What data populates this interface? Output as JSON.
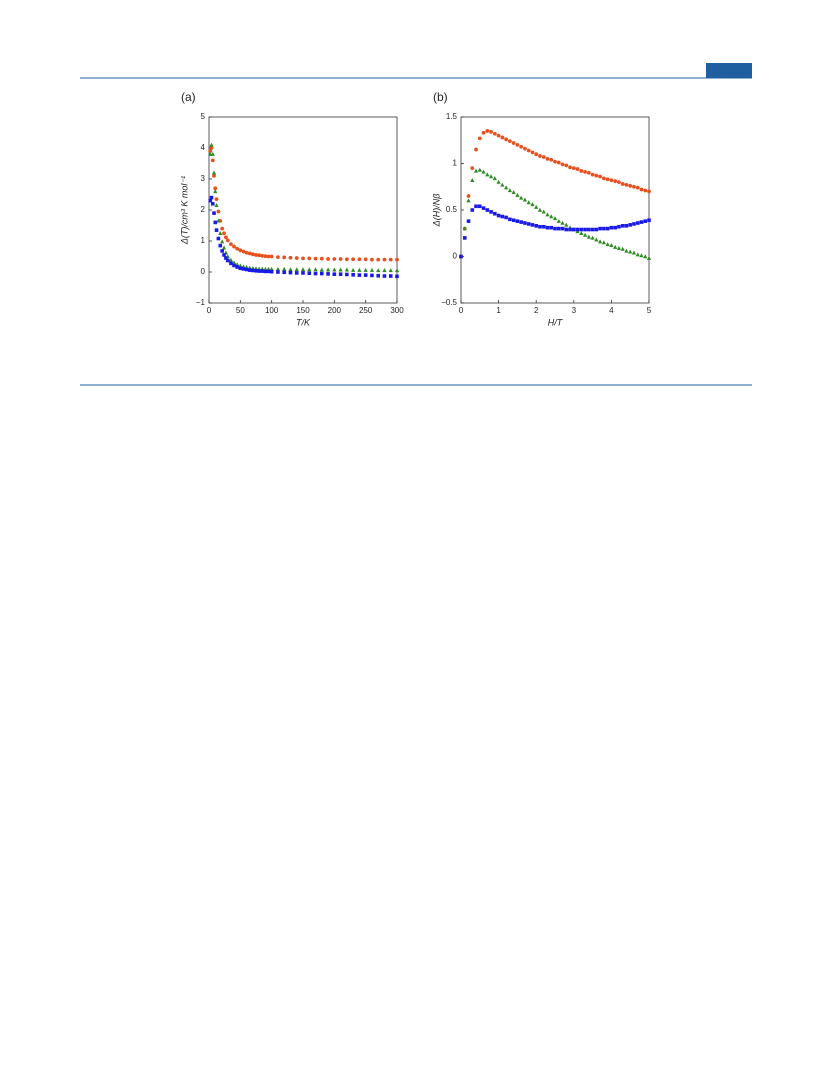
{
  "chart_data": [
    {
      "type": "scatter",
      "title": "(a)",
      "xlabel": "T/K",
      "ylabel": "Δ(T)/cm³ K mol⁻¹",
      "xlim": [
        0,
        300
      ],
      "xticks": [
        0,
        50,
        100,
        150,
        200,
        250,
        300
      ],
      "ylim": [
        -1,
        5
      ],
      "yticks": [
        {
          "value": -1,
          "label": "−1"
        },
        0,
        1,
        2,
        3,
        4,
        5
      ],
      "x": [
        2,
        4,
        6,
        8,
        10,
        12,
        15,
        18,
        21,
        24,
        27,
        30,
        35,
        40,
        45,
        50,
        55,
        60,
        65,
        70,
        75,
        80,
        85,
        90,
        95,
        100,
        110,
        120,
        130,
        140,
        150,
        160,
        170,
        180,
        190,
        200,
        210,
        220,
        230,
        240,
        250,
        260,
        270,
        280,
        290,
        300
      ],
      "series": [
        {
          "color": "#e8501f",
          "marker": "circle",
          "values": [
            3.9,
            4.0,
            3.6,
            3.1,
            2.7,
            2.35,
            1.95,
            1.65,
            1.4,
            1.25,
            1.12,
            1.02,
            0.9,
            0.82,
            0.75,
            0.7,
            0.66,
            0.62,
            0.6,
            0.57,
            0.55,
            0.54,
            0.52,
            0.51,
            0.5,
            0.5,
            0.48,
            0.47,
            0.46,
            0.45,
            0.44,
            0.44,
            0.43,
            0.43,
            0.42,
            0.42,
            0.42,
            0.41,
            0.41,
            0.41,
            0.41,
            0.4,
            0.4,
            0.4,
            0.4,
            0.4
          ]
        },
        {
          "color": "#2e8b22",
          "marker": "triangle",
          "values": [
            3.8,
            4.1,
            3.8,
            3.2,
            2.6,
            2.15,
            1.65,
            1.25,
            0.98,
            0.78,
            0.62,
            0.5,
            0.38,
            0.3,
            0.24,
            0.2,
            0.17,
            0.15,
            0.13,
            0.12,
            0.11,
            0.1,
            0.1,
            0.09,
            0.09,
            0.09,
            0.09,
            0.09,
            0.08,
            0.08,
            0.08,
            0.08,
            0.08,
            0.07,
            0.07,
            0.07,
            0.07,
            0.07,
            0.06,
            0.06,
            0.06,
            0.06,
            0.05,
            0.05,
            0.05,
            0.05
          ]
        },
        {
          "color": "#1a1ae6",
          "marker": "square",
          "values": [
            2.3,
            2.4,
            2.2,
            1.9,
            1.6,
            1.35,
            1.08,
            0.85,
            0.68,
            0.55,
            0.45,
            0.37,
            0.28,
            0.21,
            0.16,
            0.12,
            0.1,
            0.08,
            0.06,
            0.05,
            0.04,
            0.03,
            0.03,
            0.02,
            0.02,
            0.01,
            0,
            -0.01,
            -0.02,
            -0.03,
            -0.03,
            -0.04,
            -0.05,
            -0.05,
            -0.06,
            -0.07,
            -0.07,
            -0.08,
            -0.09,
            -0.1,
            -0.1,
            -0.11,
            -0.12,
            -0.13,
            -0.13,
            -0.14
          ]
        }
      ]
    },
    {
      "type": "scatter",
      "title": "(b)",
      "xlabel": "H/T",
      "ylabel": "Δ(H)/Nβ",
      "xlim": [
        0,
        5
      ],
      "xticks": [
        0,
        1,
        2,
        3,
        4,
        5
      ],
      "ylim": [
        -0.5,
        1.5
      ],
      "yticks": [
        {
          "value": -0.5,
          "label": "−0.5"
        },
        0,
        0.5,
        1,
        1.5
      ],
      "x": [
        0,
        0.1,
        0.2,
        0.3,
        0.4,
        0.5,
        0.6,
        0.7,
        0.8,
        0.9,
        1,
        1.1,
        1.2,
        1.3,
        1.4,
        1.5,
        1.6,
        1.7,
        1.8,
        1.9,
        2,
        2.1,
        2.2,
        2.3,
        2.4,
        2.5,
        2.6,
        2.7,
        2.8,
        2.9,
        3,
        3.1,
        3.2,
        3.3,
        3.4,
        3.5,
        3.6,
        3.7,
        3.8,
        3.9,
        4,
        4.1,
        4.2,
        4.3,
        4.4,
        4.5,
        4.6,
        4.7,
        4.8,
        4.9,
        5
      ],
      "series": [
        {
          "color": "#e8501f",
          "marker": "circle",
          "values": [
            0,
            0.3,
            0.65,
            0.95,
            1.15,
            1.27,
            1.33,
            1.35,
            1.34,
            1.32,
            1.3,
            1.28,
            1.26,
            1.24,
            1.22,
            1.2,
            1.18,
            1.16,
            1.14,
            1.12,
            1.1,
            1.08,
            1.07,
            1.05,
            1.04,
            1.02,
            1.01,
            0.99,
            0.98,
            0.96,
            0.95,
            0.94,
            0.92,
            0.91,
            0.9,
            0.88,
            0.87,
            0.86,
            0.84,
            0.83,
            0.82,
            0.81,
            0.8,
            0.78,
            0.77,
            0.76,
            0.75,
            0.74,
            0.72,
            0.71,
            0.7
          ]
        },
        {
          "color": "#2e8b22",
          "marker": "triangle",
          "values": [
            0,
            0.3,
            0.6,
            0.82,
            0.92,
            0.93,
            0.91,
            0.88,
            0.86,
            0.84,
            0.8,
            0.77,
            0.74,
            0.71,
            0.69,
            0.66,
            0.63,
            0.61,
            0.58,
            0.56,
            0.53,
            0.5,
            0.48,
            0.45,
            0.43,
            0.41,
            0.38,
            0.36,
            0.34,
            0.31,
            0.29,
            0.27,
            0.25,
            0.23,
            0.21,
            0.2,
            0.18,
            0.16,
            0.15,
            0.13,
            0.12,
            0.1,
            0.09,
            0.08,
            0.06,
            0.05,
            0.04,
            0.02,
            0.01,
            0,
            -0.02
          ]
        },
        {
          "color": "#1a1ae6",
          "marker": "square",
          "values": [
            0,
            0.2,
            0.38,
            0.5,
            0.54,
            0.54,
            0.52,
            0.5,
            0.48,
            0.46,
            0.44,
            0.43,
            0.42,
            0.4,
            0.39,
            0.38,
            0.37,
            0.36,
            0.35,
            0.34,
            0.33,
            0.32,
            0.32,
            0.31,
            0.31,
            0.3,
            0.3,
            0.3,
            0.29,
            0.29,
            0.29,
            0.29,
            0.29,
            0.29,
            0.29,
            0.29,
            0.29,
            0.3,
            0.3,
            0.3,
            0.31,
            0.31,
            0.32,
            0.33,
            0.33,
            0.34,
            0.35,
            0.36,
            0.37,
            0.38,
            0.39
          ]
        }
      ]
    }
  ]
}
